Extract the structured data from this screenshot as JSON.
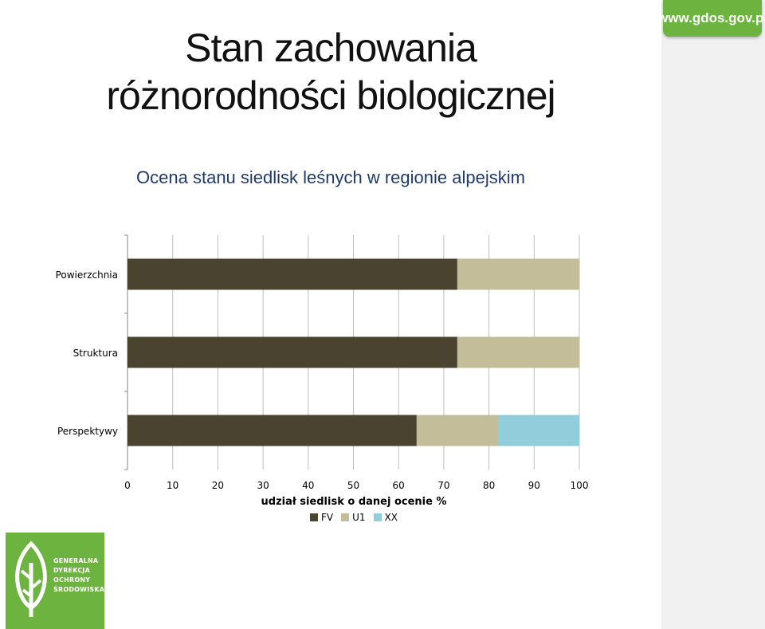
{
  "header": {
    "title_line1": "Stan zachowania",
    "title_line2": "różnorodności biologicznej",
    "url": "www.gdos.gov.pl"
  },
  "logo": {
    "lines": [
      "GENERALNA",
      "DYREKCJA",
      "OCHRONY",
      "ŚRODOWISKA"
    ]
  },
  "colors": {
    "brand_green": "#6cb33f",
    "FV": "#4a432f",
    "U1": "#c4bd9a",
    "XX": "#92cddc"
  },
  "chart_data": {
    "type": "bar",
    "orientation": "horizontal",
    "stacked": true,
    "title": "Ocena stanu siedlisk leśnych w regionie alpejskim",
    "xlabel": "udział siedlisk o danej ocenie %",
    "ylabel": "",
    "xlim": [
      0,
      100
    ],
    "x_ticks": [
      0,
      10,
      20,
      30,
      40,
      50,
      60,
      70,
      80,
      90,
      100
    ],
    "grid": true,
    "legend_position": "bottom",
    "categories": [
      "Powierzchnia",
      "Struktura",
      "Perspektywy"
    ],
    "series": [
      {
        "name": "FV",
        "color": "#4a432f",
        "values": [
          73,
          73,
          64
        ]
      },
      {
        "name": "U1",
        "color": "#c4bd9a",
        "values": [
          27,
          27,
          18
        ]
      },
      {
        "name": "XX",
        "color": "#92cddc",
        "values": [
          0,
          0,
          18
        ]
      }
    ]
  }
}
